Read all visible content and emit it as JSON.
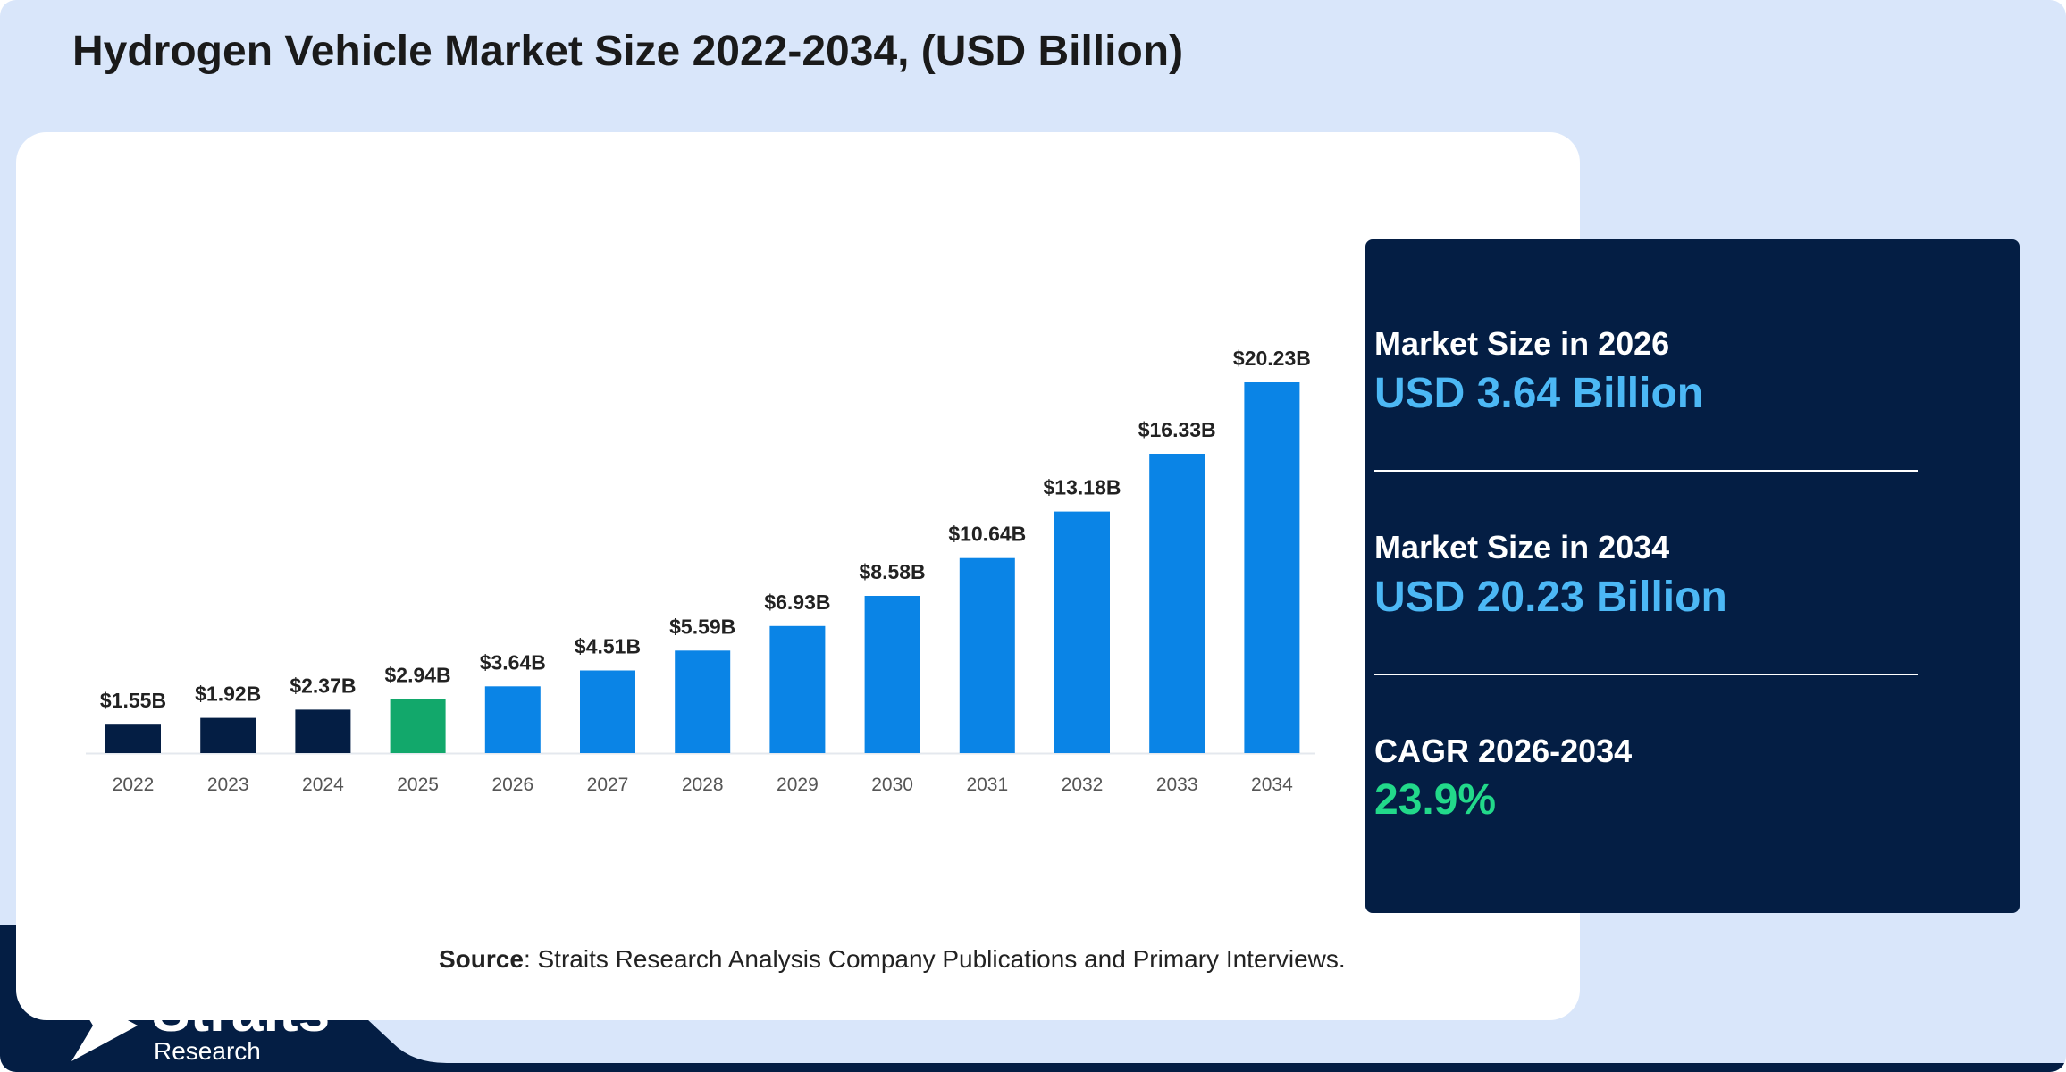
{
  "title": "Hydrogen Vehicle Market Size 2022-2034, (USD Billion)",
  "colors": {
    "background": "#d9e6fa",
    "dark_navy": "#041e44",
    "bar_history": "#041e44",
    "bar_base_year": "#12a86b",
    "bar_forecast": "#0a84e6",
    "stat_blue": "#4cb8f5",
    "stat_green": "#22d98a"
  },
  "chart_data": {
    "type": "bar",
    "title": "Hydrogen Vehicle Market Size 2022-2034, (USD Billion)",
    "categories": [
      "2022",
      "2023",
      "2024",
      "2025",
      "2026",
      "2027",
      "2028",
      "2029",
      "2030",
      "2031",
      "2032",
      "2033",
      "2034"
    ],
    "values": [
      1.55,
      1.92,
      2.37,
      2.94,
      3.64,
      4.51,
      5.59,
      6.93,
      8.58,
      10.64,
      13.18,
      16.33,
      20.23
    ],
    "data_labels": [
      "$1.55B",
      "$1.92B",
      "$2.37B",
      "$2.94B",
      "$3.64B",
      "$4.51B",
      "$5.59B",
      "$6.93B",
      "$8.58B",
      "$10.64B",
      "$13.18B",
      "$16.33B",
      "$20.23B"
    ],
    "bar_colors": [
      "#041e44",
      "#041e44",
      "#041e44",
      "#12a86b",
      "#0a84e6",
      "#0a84e6",
      "#0a84e6",
      "#0a84e6",
      "#0a84e6",
      "#0a84e6",
      "#0a84e6",
      "#0a84e6",
      "#0a84e6"
    ],
    "xlabel": "",
    "ylabel": "",
    "ylim": [
      0,
      20.23
    ],
    "grid": false,
    "legend": "none"
  },
  "stats": {
    "size_2026_label": "Market Size in 2026",
    "size_2026_value": "USD 3.64 Billion",
    "size_2034_label": "Market Size in 2034",
    "size_2034_value": "USD 20.23 Billion",
    "cagr_label": "CAGR 2026-2034",
    "cagr_value": "23.9%"
  },
  "source": {
    "label": "Source",
    "text": ": Straits Research Analysis Company Publications and Primary Interviews."
  },
  "logo": {
    "name": "Straits",
    "sub": "Research",
    "icon": "arrow-logo-icon"
  }
}
